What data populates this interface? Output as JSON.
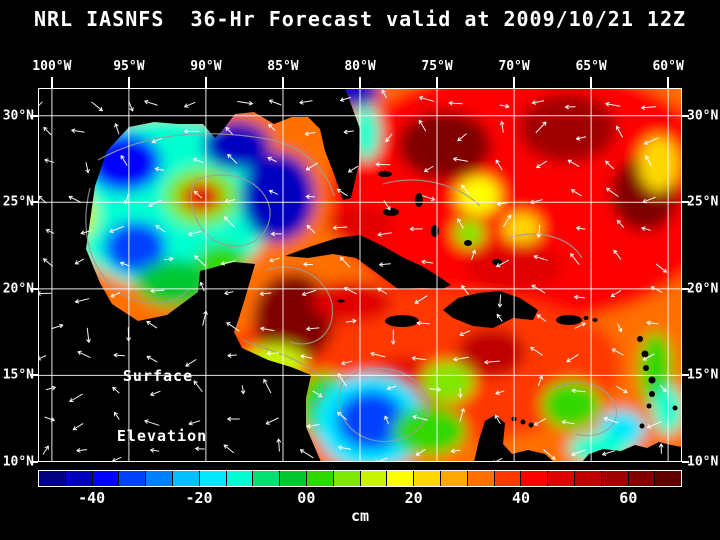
{
  "title": "NRL IASNFS  36-Hr Forecast valid at 2009/10/21 12Z",
  "map": {
    "label_line1": "Surface",
    "label_line2": "Elevation"
  },
  "axes": {
    "lon_ticks": [
      {
        "label": "100°W",
        "lon": 100
      },
      {
        "label": "95°W",
        "lon": 95
      },
      {
        "label": "90°W",
        "lon": 90
      },
      {
        "label": "85°W",
        "lon": 85
      },
      {
        "label": "80°W",
        "lon": 80
      },
      {
        "label": "75°W",
        "lon": 75
      },
      {
        "label": "70°W",
        "lon": 70
      },
      {
        "label": "65°W",
        "lon": 65
      },
      {
        "label": "60°W",
        "lon": 60
      }
    ],
    "lat_ticks": [
      {
        "label": "30°N",
        "lat": 30
      },
      {
        "label": "25°N",
        "lat": 25
      },
      {
        "label": "20°N",
        "lat": 20
      },
      {
        "label": "15°N",
        "lat": 15
      },
      {
        "label": "10°N",
        "lat": 10
      }
    ]
  },
  "colorbar": {
    "unit": "cm",
    "min_cm": -50,
    "max_cm": 70,
    "step_cm": 5,
    "segment_colors": [
      "#000080",
      "#0000C0",
      "#0000FF",
      "#0040FF",
      "#0080FF",
      "#00C0FF",
      "#00E8FF",
      "#00FFD0",
      "#00E070",
      "#00C830",
      "#30D800",
      "#80E800",
      "#C8F400",
      "#FFFF00",
      "#FFD800",
      "#FFA800",
      "#FF7000",
      "#FF3800",
      "#FF0000",
      "#E00000",
      "#C00000",
      "#A00000",
      "#800000",
      "#600000"
    ],
    "ticks": [
      {
        "value": -40,
        "label": "-40"
      },
      {
        "value": -20,
        "label": "-20"
      },
      {
        "value": 0,
        "label": "00"
      },
      {
        "value": 20,
        "label": "20"
      },
      {
        "value": 40,
        "label": "40"
      },
      {
        "value": 60,
        "label": "60"
      }
    ]
  },
  "chart_data": {
    "type": "heatmap",
    "variable": "Surface Elevation",
    "units": "cm",
    "model": "NRL IASNFS",
    "forecast_hours": 36,
    "valid": "2009/10/21 12Z",
    "lon_range_w": [
      100.9,
      59.1
    ],
    "lat_range_n": [
      31.6,
      10.0
    ],
    "base_value_cm": 30,
    "features": [
      {
        "name": "atl-base",
        "lon_w": 69.0,
        "lat_n": 25.5,
        "rx_deg": 13.0,
        "ry_deg": 7.5,
        "value_cm": 40
      },
      {
        "name": "carib-base",
        "lon_w": 76.0,
        "lat_n": 15.5,
        "rx_deg": 13.0,
        "ry_deg": 4.5,
        "value_cm": 35
      },
      {
        "name": "gulf-base",
        "lon_w": 92.5,
        "lat_n": 25.0,
        "rx_deg": 7.0,
        "ry_deg": 5.0,
        "value_cm": -15
      },
      {
        "name": "nw-gulf-blue",
        "lon_w": 95.3,
        "lat_n": 27.3,
        "rx_deg": 2.4,
        "ry_deg": 1.7,
        "value_cm": -38
      },
      {
        "name": "n-gulf-blue",
        "lon_w": 88.0,
        "lat_n": 28.3,
        "rx_deg": 2.2,
        "ry_deg": 1.4,
        "value_cm": -42
      },
      {
        "name": "loop-current-blue",
        "lon_w": 85.3,
        "lat_n": 25.3,
        "rx_deg": 2.4,
        "ry_deg": 2.6,
        "value_cm": -45
      },
      {
        "name": "warm-ring-halo",
        "lon_w": 90.3,
        "lat_n": 25.3,
        "rx_deg": 2.4,
        "ry_deg": 1.7,
        "value_cm": 8
      },
      {
        "name": "warm-ring-red",
        "lon_w": 90.3,
        "lat_n": 25.3,
        "rx_deg": 1.3,
        "ry_deg": 0.9,
        "value_cm": 45
      },
      {
        "name": "w-gulf-yellow",
        "lon_w": 98.7,
        "lat_n": 24.3,
        "rx_deg": 1.6,
        "ry_deg": 1.6,
        "value_cm": 12
      },
      {
        "name": "sw-gulf-blue",
        "lon_w": 94.6,
        "lat_n": 22.4,
        "rx_deg": 2.0,
        "ry_deg": 1.5,
        "value_cm": -32
      },
      {
        "name": "campeche-green",
        "lon_w": 92.0,
        "lat_n": 20.3,
        "rx_deg": 2.6,
        "ry_deg": 1.4,
        "value_cm": -2
      },
      {
        "name": "yucatan-shelf-green",
        "lon_w": 89.0,
        "lat_n": 21.6,
        "rx_deg": 1.6,
        "ry_deg": 1.0,
        "value_cm": 4
      },
      {
        "name": "atl-blue-top",
        "lon_w": 80.6,
        "lat_n": 31.4,
        "rx_deg": 1.9,
        "ry_deg": 0.9,
        "value_cm": -45
      },
      {
        "name": "florida-coast-cyan",
        "lon_w": 79.6,
        "lat_n": 29.0,
        "rx_deg": 0.9,
        "ry_deg": 1.6,
        "value_cm": -12
      },
      {
        "name": "straits-red",
        "lon_w": 80.0,
        "lat_n": 23.8,
        "rx_deg": 2.2,
        "ry_deg": 1.0,
        "value_cm": 45
      },
      {
        "name": "atl-darkred-1",
        "lon_w": 74.5,
        "lat_n": 28.3,
        "rx_deg": 3.0,
        "ry_deg": 2.0,
        "value_cm": 62
      },
      {
        "name": "atl-darkred-2",
        "lon_w": 66.5,
        "lat_n": 29.3,
        "rx_deg": 3.2,
        "ry_deg": 2.0,
        "value_cm": 58
      },
      {
        "name": "atl-darkred-3",
        "lon_w": 61.5,
        "lat_n": 25.5,
        "rx_deg": 2.2,
        "ry_deg": 2.2,
        "value_cm": 60
      },
      {
        "name": "atl-yellow-1",
        "lon_w": 72.3,
        "lat_n": 25.4,
        "rx_deg": 1.4,
        "ry_deg": 1.1,
        "value_cm": 18
      },
      {
        "name": "atl-yellow-2",
        "lon_w": 69.5,
        "lat_n": 23.5,
        "rx_deg": 1.2,
        "ry_deg": 0.9,
        "value_cm": 22
      },
      {
        "name": "atl-yellow-3",
        "lon_w": 60.6,
        "lat_n": 27.2,
        "rx_deg": 1.3,
        "ry_deg": 1.6,
        "value_cm": 20
      },
      {
        "name": "bahamas-green",
        "lon_w": 72.9,
        "lat_n": 23.2,
        "rx_deg": 1.0,
        "ry_deg": 0.8,
        "value_cm": 5
      },
      {
        "name": "atl-red-mid",
        "lon_w": 70.0,
        "lat_n": 21.3,
        "rx_deg": 3.2,
        "ry_deg": 1.4,
        "value_cm": 46
      },
      {
        "name": "w-carib-darkred",
        "lon_w": 84.3,
        "lat_n": 18.3,
        "rx_deg": 2.6,
        "ry_deg": 2.6,
        "value_cm": 64
      },
      {
        "name": "cayman-red",
        "lon_w": 80.5,
        "lat_n": 19.3,
        "rx_deg": 2.6,
        "ry_deg": 1.2,
        "value_cm": 48
      },
      {
        "name": "hispaniola-s-red",
        "lon_w": 71.5,
        "lat_n": 16.3,
        "rx_deg": 2.2,
        "ry_deg": 1.4,
        "value_cm": 50
      },
      {
        "name": "colombia-basin-red",
        "lon_w": 77.0,
        "lat_n": 14.2,
        "rx_deg": 2.6,
        "ry_deg": 1.8,
        "value_cm": 45
      },
      {
        "name": "honduras-yellow",
        "lon_w": 85.5,
        "lat_n": 15.8,
        "rx_deg": 2.0,
        "ry_deg": 1.0,
        "value_cm": 14
      },
      {
        "name": "nicaragua-green",
        "lon_w": 82.3,
        "lat_n": 13.3,
        "rx_deg": 1.7,
        "ry_deg": 1.9,
        "value_cm": 3
      },
      {
        "name": "sw-carib-cyan-halo",
        "lon_w": 79.3,
        "lat_n": 12.3,
        "rx_deg": 3.6,
        "ry_deg": 2.8,
        "value_cm": -18
      },
      {
        "name": "sw-carib-blue",
        "lon_w": 79.3,
        "lat_n": 12.4,
        "rx_deg": 2.2,
        "ry_deg": 1.7,
        "value_cm": -35
      },
      {
        "name": "colombia-green",
        "lon_w": 75.5,
        "lat_n": 11.8,
        "rx_deg": 2.4,
        "ry_deg": 1.4,
        "value_cm": 0
      },
      {
        "name": "c-carib-green",
        "lon_w": 74.3,
        "lat_n": 14.6,
        "rx_deg": 1.7,
        "ry_deg": 1.2,
        "value_cm": 8
      },
      {
        "name": "pr-orange",
        "lon_w": 65.8,
        "lat_n": 17.0,
        "rx_deg": 2.2,
        "ry_deg": 1.0,
        "value_cm": 35
      },
      {
        "name": "e-carib-green",
        "lon_w": 66.3,
        "lat_n": 13.3,
        "rx_deg": 1.9,
        "ry_deg": 1.4,
        "value_cm": 2
      },
      {
        "name": "e-carib-cyan",
        "lon_w": 63.0,
        "lat_n": 11.9,
        "rx_deg": 1.5,
        "ry_deg": 1.1,
        "value_cm": -18
      },
      {
        "name": "venezuela-cyan",
        "lon_w": 64.5,
        "lat_n": 10.8,
        "rx_deg": 2.0,
        "ry_deg": 0.9,
        "value_cm": -12
      },
      {
        "name": "antilles-green",
        "lon_w": 60.8,
        "lat_n": 15.3,
        "rx_deg": 1.1,
        "ry_deg": 2.2,
        "value_cm": 0
      },
      {
        "name": "antilles-cyan",
        "lon_w": 60.0,
        "lat_n": 13.0,
        "rx_deg": 1.0,
        "ry_deg": 1.4,
        "value_cm": -15
      }
    ]
  }
}
